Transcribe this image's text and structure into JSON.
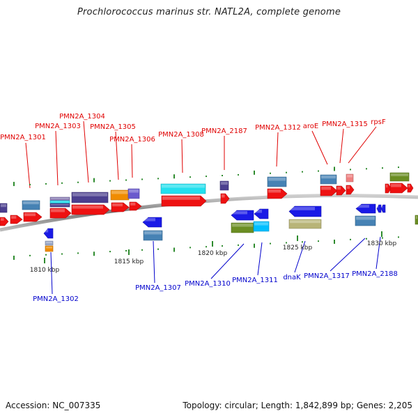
{
  "title": "Prochlorococcus marinus str. NATL2A, complete genome",
  "footer": {
    "accession": "Accession: NC_007335",
    "stats": "Topology: circular; Length: 1,842,899 bp; Genes: 2,205"
  },
  "colors": {
    "backbone": "#8a8a8a",
    "forward_label": "#e00000",
    "reverse_label": "#0000cc",
    "tick": "#2e8b2e"
  },
  "ticks": [
    {
      "label": "1810 kbp"
    },
    {
      "label": "1815 kbp"
    },
    {
      "label": "1820 kbp"
    },
    {
      "label": "1825 kbp"
    },
    {
      "label": "1830 kbp"
    }
  ],
  "forward_labels": [
    "PMN2A_1301",
    "PMN2A_1303",
    "PMN2A_1304",
    "PMN2A_1305",
    "PMN2A_1306",
    "PMN2A_1308",
    "PMN2A_2187",
    "PMN2A_1312",
    "aroE",
    "PMN2A_1315",
    "rpsF"
  ],
  "reverse_labels": [
    "PMN2A_1302",
    "PMN2A_1307",
    "PMN2A_1310",
    "PMN2A_1311",
    "dnaK",
    "PMN2A_1317",
    "PMN2A_2188"
  ]
}
